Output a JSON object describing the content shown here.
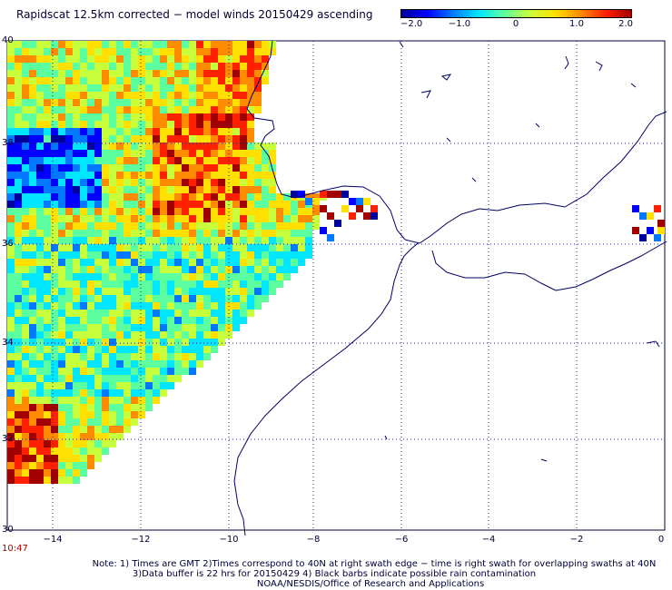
{
  "title": "Rapidscat 12.5km corrected − model winds 20150429 ascending",
  "colorbar": {
    "ticks": [
      "−2.0",
      "−1.0",
      "0",
      "1.0",
      "2.0"
    ],
    "range": [
      -2.0,
      2.0
    ],
    "colors": [
      "#00009a",
      "#0000ff",
      "#0078ff",
      "#00e6ff",
      "#5cffa0",
      "#c8ff3c",
      "#ffe000",
      "#ff8c00",
      "#ff2000",
      "#a00000"
    ]
  },
  "map": {
    "lat_ticks": [
      "40",
      "38",
      "36",
      "34",
      "32",
      "30"
    ],
    "lon_ticks": [
      "−14",
      "−12",
      "−10",
      "−8",
      "−6",
      "−4",
      "−2",
      "0"
    ],
    "lat_range": [
      30,
      40
    ],
    "lon_range": [
      -15,
      0
    ],
    "coastline_color": "#000066",
    "grid_color": "#2a2a7a"
  },
  "time_label": "10:47",
  "notes": [
    "Note: 1) Times are GMT 2)Times correspond to 40N at right swath edge − time is right swath for overlapping swaths at 40N",
    "3)Data buffer is 22 hrs for 20150429 4) Black barbs indicate possible rain contamination",
    "NOAA/NESDIS/Office of Research and Applications"
  ]
}
